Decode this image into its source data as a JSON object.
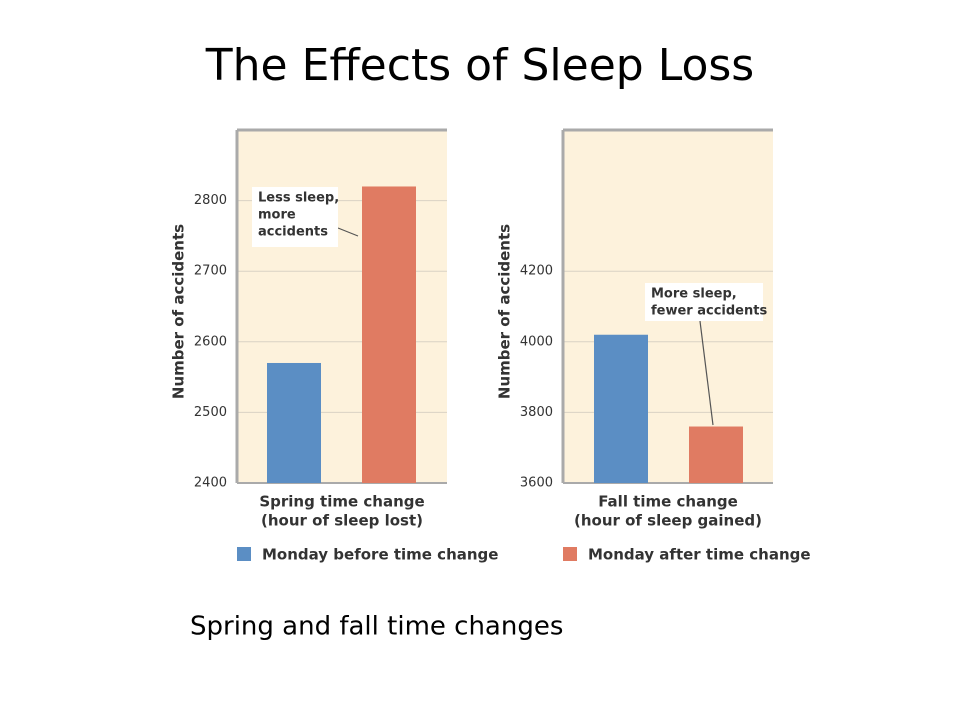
{
  "title": "The Effects of Sleep Loss",
  "caption": "Spring and fall time changes",
  "legend": [
    {
      "name": "Monday before time change",
      "color": "#5b8ec4"
    },
    {
      "name": "Monday after time change",
      "color": "#e07b62"
    }
  ],
  "chart_data": [
    {
      "type": "bar",
      "ylabel": "Number of accidents",
      "xlabel": [
        "Spring time change",
        "(hour of sleep lost)"
      ],
      "categories": [
        null,
        null
      ],
      "values": [
        2570,
        2820
      ],
      "ylim": [
        2400,
        2900
      ],
      "yticks": [
        2400,
        2500,
        2600,
        2700,
        2800
      ],
      "grid": true,
      "annotation": [
        "Less sleep,",
        "more",
        "accidents"
      ]
    },
    {
      "type": "bar",
      "ylabel": "Number of accidents",
      "xlabel": [
        "Fall time change",
        "(hour of sleep gained)"
      ],
      "categories": [
        null,
        null
      ],
      "values": [
        4020,
        3760
      ],
      "ylim": [
        3600,
        4600
      ],
      "yticks": [
        3600,
        3800,
        4000,
        4200
      ],
      "grid": true,
      "annotation": [
        "More sleep,",
        "fewer accidents"
      ]
    }
  ]
}
